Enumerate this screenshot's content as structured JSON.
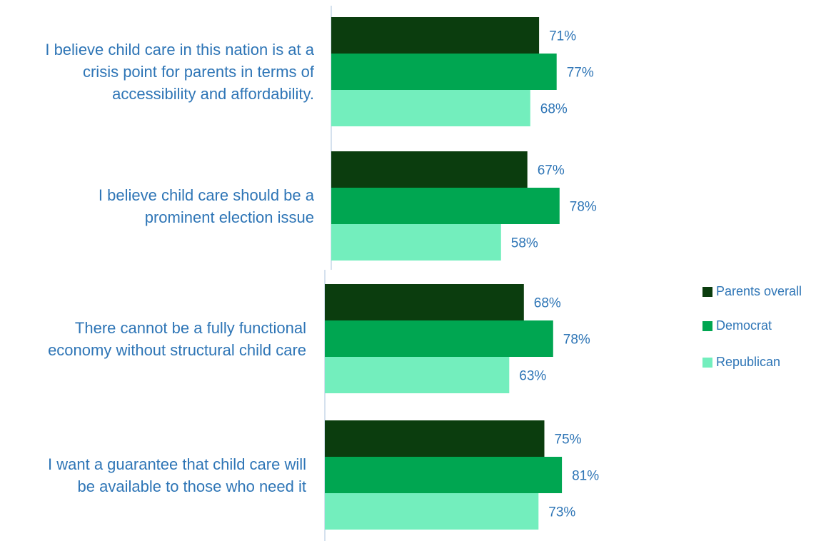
{
  "chart_data": {
    "type": "bar",
    "orientation": "horizontal",
    "categories": [
      "I believe child care in this nation is at a crisis point for parents in terms of accessibility and affordability.",
      "I believe child care should be a prominent election issue",
      "There cannot be a fully functional economy without structural child care",
      "I want a guarantee that child care will be available to those who need it"
    ],
    "category_lines": [
      [
        "I believe child care in this nation is at a",
        "crisis point for parents in terms of",
        "accessibility and affordability."
      ],
      [
        "I believe child care should be a",
        "prominent election issue"
      ],
      [
        "There cannot be a fully functional",
        "economy without structural child care"
      ],
      [
        "I want a guarantee that child care will",
        "be available to those who need it"
      ]
    ],
    "series": [
      {
        "name": "Parents overall",
        "color": "#0b3d0e",
        "values": [
          71,
          67,
          68,
          75
        ],
        "labels": [
          "71%",
          "67%",
          "68%",
          "75%"
        ]
      },
      {
        "name": "Democrat",
        "color": "#00a651",
        "values": [
          77,
          78,
          78,
          81
        ],
        "labels": [
          "77%",
          "78%",
          "78%",
          "81%"
        ]
      },
      {
        "name": "Republican",
        "color": "#73eebd",
        "values": [
          68,
          58,
          63,
          73
        ],
        "labels": [
          "68%",
          "58%",
          "63%",
          "73%"
        ]
      }
    ],
    "value_suffix": "%",
    "xlim": [
      0,
      100
    ],
    "legend_position": "right",
    "grid": false,
    "label_color": "#2e75b6",
    "axis_color": "#d5e1ee"
  }
}
